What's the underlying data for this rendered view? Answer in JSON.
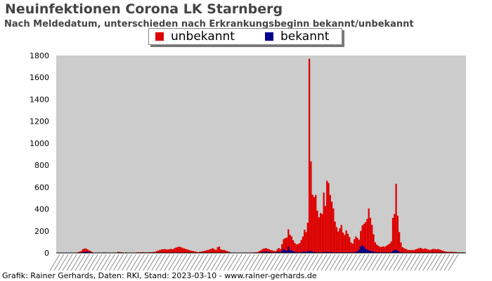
{
  "header": {
    "title": "Neuinfektionen Corona LK Starnberg",
    "subtitle": "Nach Meldedatum, unterschieden nach Erkrankungsbeginn bekannt/unbekannt"
  },
  "footer": {
    "credit": "Grafik: Rainer Gerhards, Daten: RKI, Stand: 2023-03-10 - www.rainer-gerhards.de"
  },
  "colors": {
    "plot_background": "#cccccc",
    "unbekannt": "#dd0000",
    "bekannt": "#00008f"
  },
  "chart_data": {
    "type": "bar",
    "stacked": true,
    "title": "Neuinfektionen Corona LK Starnberg",
    "subtitle": "Nach Meldedatum, unterschieden nach Erkrankungsbeginn bekannt/unbekannt",
    "xlabel": "",
    "ylabel": "",
    "ylim": [
      0,
      1800
    ],
    "yticks": [
      0,
      200,
      400,
      600,
      800,
      1000,
      1200,
      1400,
      1600,
      1800
    ],
    "grid": false,
    "legend_position": "top",
    "x_tick_labels": "dates (illegible)",
    "series_names": [
      "unbekannt",
      "bekannt"
    ],
    "unbekannt": [
      0,
      0,
      0,
      0,
      0,
      0,
      0,
      0,
      0,
      0,
      0,
      0,
      2,
      4,
      8,
      12,
      25,
      30,
      28,
      22,
      15,
      10,
      5,
      2,
      0,
      0,
      0,
      0,
      0,
      5,
      4,
      1,
      0,
      0,
      0,
      0,
      0,
      0,
      10,
      8,
      6,
      4,
      0,
      5,
      0,
      0,
      0,
      0,
      0,
      0,
      6,
      5,
      6,
      7,
      5,
      6,
      5,
      6,
      7,
      7,
      8,
      10,
      15,
      20,
      25,
      28,
      30,
      32,
      30,
      28,
      32,
      35,
      30,
      40,
      45,
      50,
      55,
      50,
      45,
      40,
      35,
      30,
      25,
      20,
      18,
      15,
      10,
      8,
      5,
      10,
      12,
      15,
      18,
      22,
      25,
      30,
      35,
      40,
      30,
      25,
      50,
      55,
      30,
      25,
      25,
      20,
      15,
      10,
      5,
      2,
      0,
      0,
      0,
      0,
      0,
      0,
      0,
      0,
      2,
      3,
      3,
      4,
      4,
      5,
      6,
      8,
      15,
      20,
      28,
      30,
      32,
      28,
      25,
      20,
      18,
      15,
      12,
      25,
      35,
      30,
      60,
      90,
      110,
      120,
      160,
      140,
      130,
      100,
      80,
      70,
      75,
      85,
      110,
      140,
      200,
      180,
      260,
      1750,
      820,
      520,
      500,
      520,
      380,
      320,
      360,
      350,
      540,
      420,
      650,
      630,
      520,
      460,
      400,
      280,
      230,
      190,
      220,
      250,
      180,
      160,
      200,
      170,
      140,
      90,
      80,
      120,
      140,
      120,
      90,
      140,
      180,
      210,
      240,
      280,
      380,
      300,
      240,
      160,
      90,
      70,
      60,
      50,
      50,
      55,
      50,
      60,
      70,
      80,
      100,
      300,
      330,
      600,
      320,
      180,
      90,
      50,
      40,
      35,
      28,
      25,
      25,
      25,
      25,
      30,
      35,
      40,
      45,
      40,
      35,
      40,
      35,
      30,
      25,
      30,
      35,
      35,
      30,
      35,
      30,
      25,
      20,
      15,
      12,
      10,
      10,
      10,
      10,
      8,
      8,
      6,
      5,
      5,
      5,
      5,
      0
    ],
    "bekannt": [
      0,
      0,
      0,
      0,
      0,
      0,
      0,
      0,
      0,
      0,
      0,
      0,
      1,
      2,
      3,
      4,
      8,
      10,
      12,
      10,
      8,
      6,
      3,
      1,
      0,
      0,
      0,
      0,
      0,
      0,
      0,
      0,
      0,
      0,
      0,
      0,
      0,
      0,
      0,
      0,
      0,
      0,
      0,
      0,
      0,
      0,
      0,
      0,
      0,
      0,
      0,
      0,
      0,
      0,
      0,
      0,
      0,
      0,
      0,
      0,
      0,
      0,
      1,
      2,
      2,
      3,
      3,
      3,
      2,
      2,
      2,
      2,
      2,
      2,
      3,
      3,
      3,
      3,
      2,
      2,
      2,
      2,
      2,
      2,
      1,
      1,
      1,
      1,
      1,
      1,
      1,
      1,
      1,
      2,
      2,
      2,
      2,
      3,
      2,
      2,
      3,
      3,
      2,
      2,
      2,
      1,
      1,
      1,
      0,
      0,
      0,
      0,
      0,
      0,
      0,
      0,
      0,
      0,
      0,
      0,
      0,
      0,
      0,
      0,
      0,
      0,
      3,
      5,
      8,
      10,
      12,
      10,
      8,
      6,
      5,
      4,
      3,
      8,
      10,
      5,
      20,
      35,
      25,
      20,
      55,
      25,
      20,
      15,
      10,
      8,
      5,
      5,
      8,
      10,
      12,
      10,
      15,
      20,
      15,
      10,
      8,
      8,
      6,
      5,
      5,
      5,
      10,
      8,
      8,
      8,
      8,
      6,
      5,
      5,
      5,
      5,
      5,
      5,
      5,
      5,
      5,
      5,
      5,
      5,
      5,
      5,
      10,
      15,
      30,
      60,
      70,
      55,
      40,
      30,
      25,
      20,
      15,
      10,
      8,
      5,
      5,
      5,
      5,
      5,
      5,
      5,
      5,
      5,
      5,
      20,
      25,
      30,
      20,
      10,
      5,
      2,
      2,
      2,
      1,
      1,
      1,
      1,
      1,
      1,
      1,
      1,
      1,
      1,
      1,
      1,
      1,
      1,
      1,
      1,
      1,
      1,
      1,
      1,
      1,
      1,
      0,
      0,
      0,
      0,
      0,
      0,
      0,
      0,
      0,
      0,
      0,
      0,
      0,
      0,
      0
    ]
  }
}
